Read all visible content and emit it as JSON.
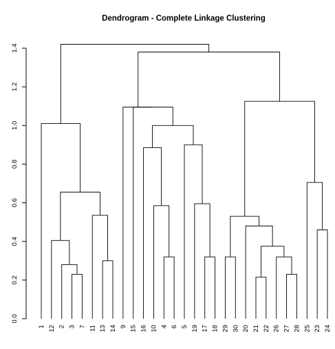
{
  "chart_data": {
    "type": "dendrogram",
    "title": "Dendrogram - Complete Linkage Clustering",
    "xlabel": "",
    "ylabel": "",
    "ylim": [
      0,
      1.4
    ],
    "y_ticks": [
      "0.0",
      "0.2",
      "0.4",
      "0.6",
      "0.8",
      "1.0",
      "1.2",
      "1.4"
    ],
    "leaf_order": [
      "1",
      "12",
      "2",
      "3",
      "7",
      "11",
      "13",
      "14",
      "9",
      "15",
      "16",
      "10",
      "4",
      "6",
      "5",
      "19",
      "17",
      "18",
      "29",
      "30",
      "20",
      "21",
      "22",
      "26",
      "27",
      "28",
      "25",
      "23",
      "24"
    ],
    "merges": [
      {
        "a": "3",
        "b": "7",
        "height": 0.23
      },
      {
        "a": "2",
        "b": "m1",
        "height": 0.28
      },
      {
        "a": "12",
        "b": "m2",
        "height": 0.405
      },
      {
        "a": "13",
        "b": "14",
        "height": 0.3
      },
      {
        "a": "11",
        "b": "m4",
        "height": 0.535
      },
      {
        "a": "m3",
        "b": "m5",
        "height": 0.655
      },
      {
        "a": "1",
        "b": "m6",
        "height": 1.01
      },
      {
        "a": "4",
        "b": "6",
        "height": 0.32
      },
      {
        "a": "10",
        "b": "m8",
        "height": 0.585
      },
      {
        "a": "16",
        "b": "m9",
        "height": 0.885
      },
      {
        "a": "17",
        "b": "18",
        "height": 0.32
      },
      {
        "a": "19",
        "b": "m11",
        "height": 0.595
      },
      {
        "a": "5",
        "b": "m12",
        "height": 0.9
      },
      {
        "a": "m10",
        "b": "m13",
        "height": 1.0
      },
      {
        "a": "15",
        "b": "m14",
        "height": 1.095
      },
      {
        "a": "9",
        "b": "m15",
        "height": 1.095
      },
      {
        "a": "29",
        "b": "30",
        "height": 0.32
      },
      {
        "a": "21",
        "b": "22",
        "height": 0.215
      },
      {
        "a": "27",
        "b": "28",
        "height": 0.23
      },
      {
        "a": "26",
        "b": "m19",
        "height": 0.32
      },
      {
        "a": "m18",
        "b": "m20",
        "height": 0.375
      },
      {
        "a": "20",
        "b": "m21",
        "height": 0.48
      },
      {
        "a": "m17",
        "b": "m22",
        "height": 0.53
      },
      {
        "a": "23",
        "b": "24",
        "height": 0.46
      },
      {
        "a": "25",
        "b": "m24",
        "height": 0.705
      },
      {
        "a": "m23",
        "b": "m25",
        "height": 1.125
      },
      {
        "a": "m16",
        "b": "m26",
        "height": 1.38
      },
      {
        "a": "m7",
        "b": "m27",
        "height": 1.42
      }
    ]
  }
}
